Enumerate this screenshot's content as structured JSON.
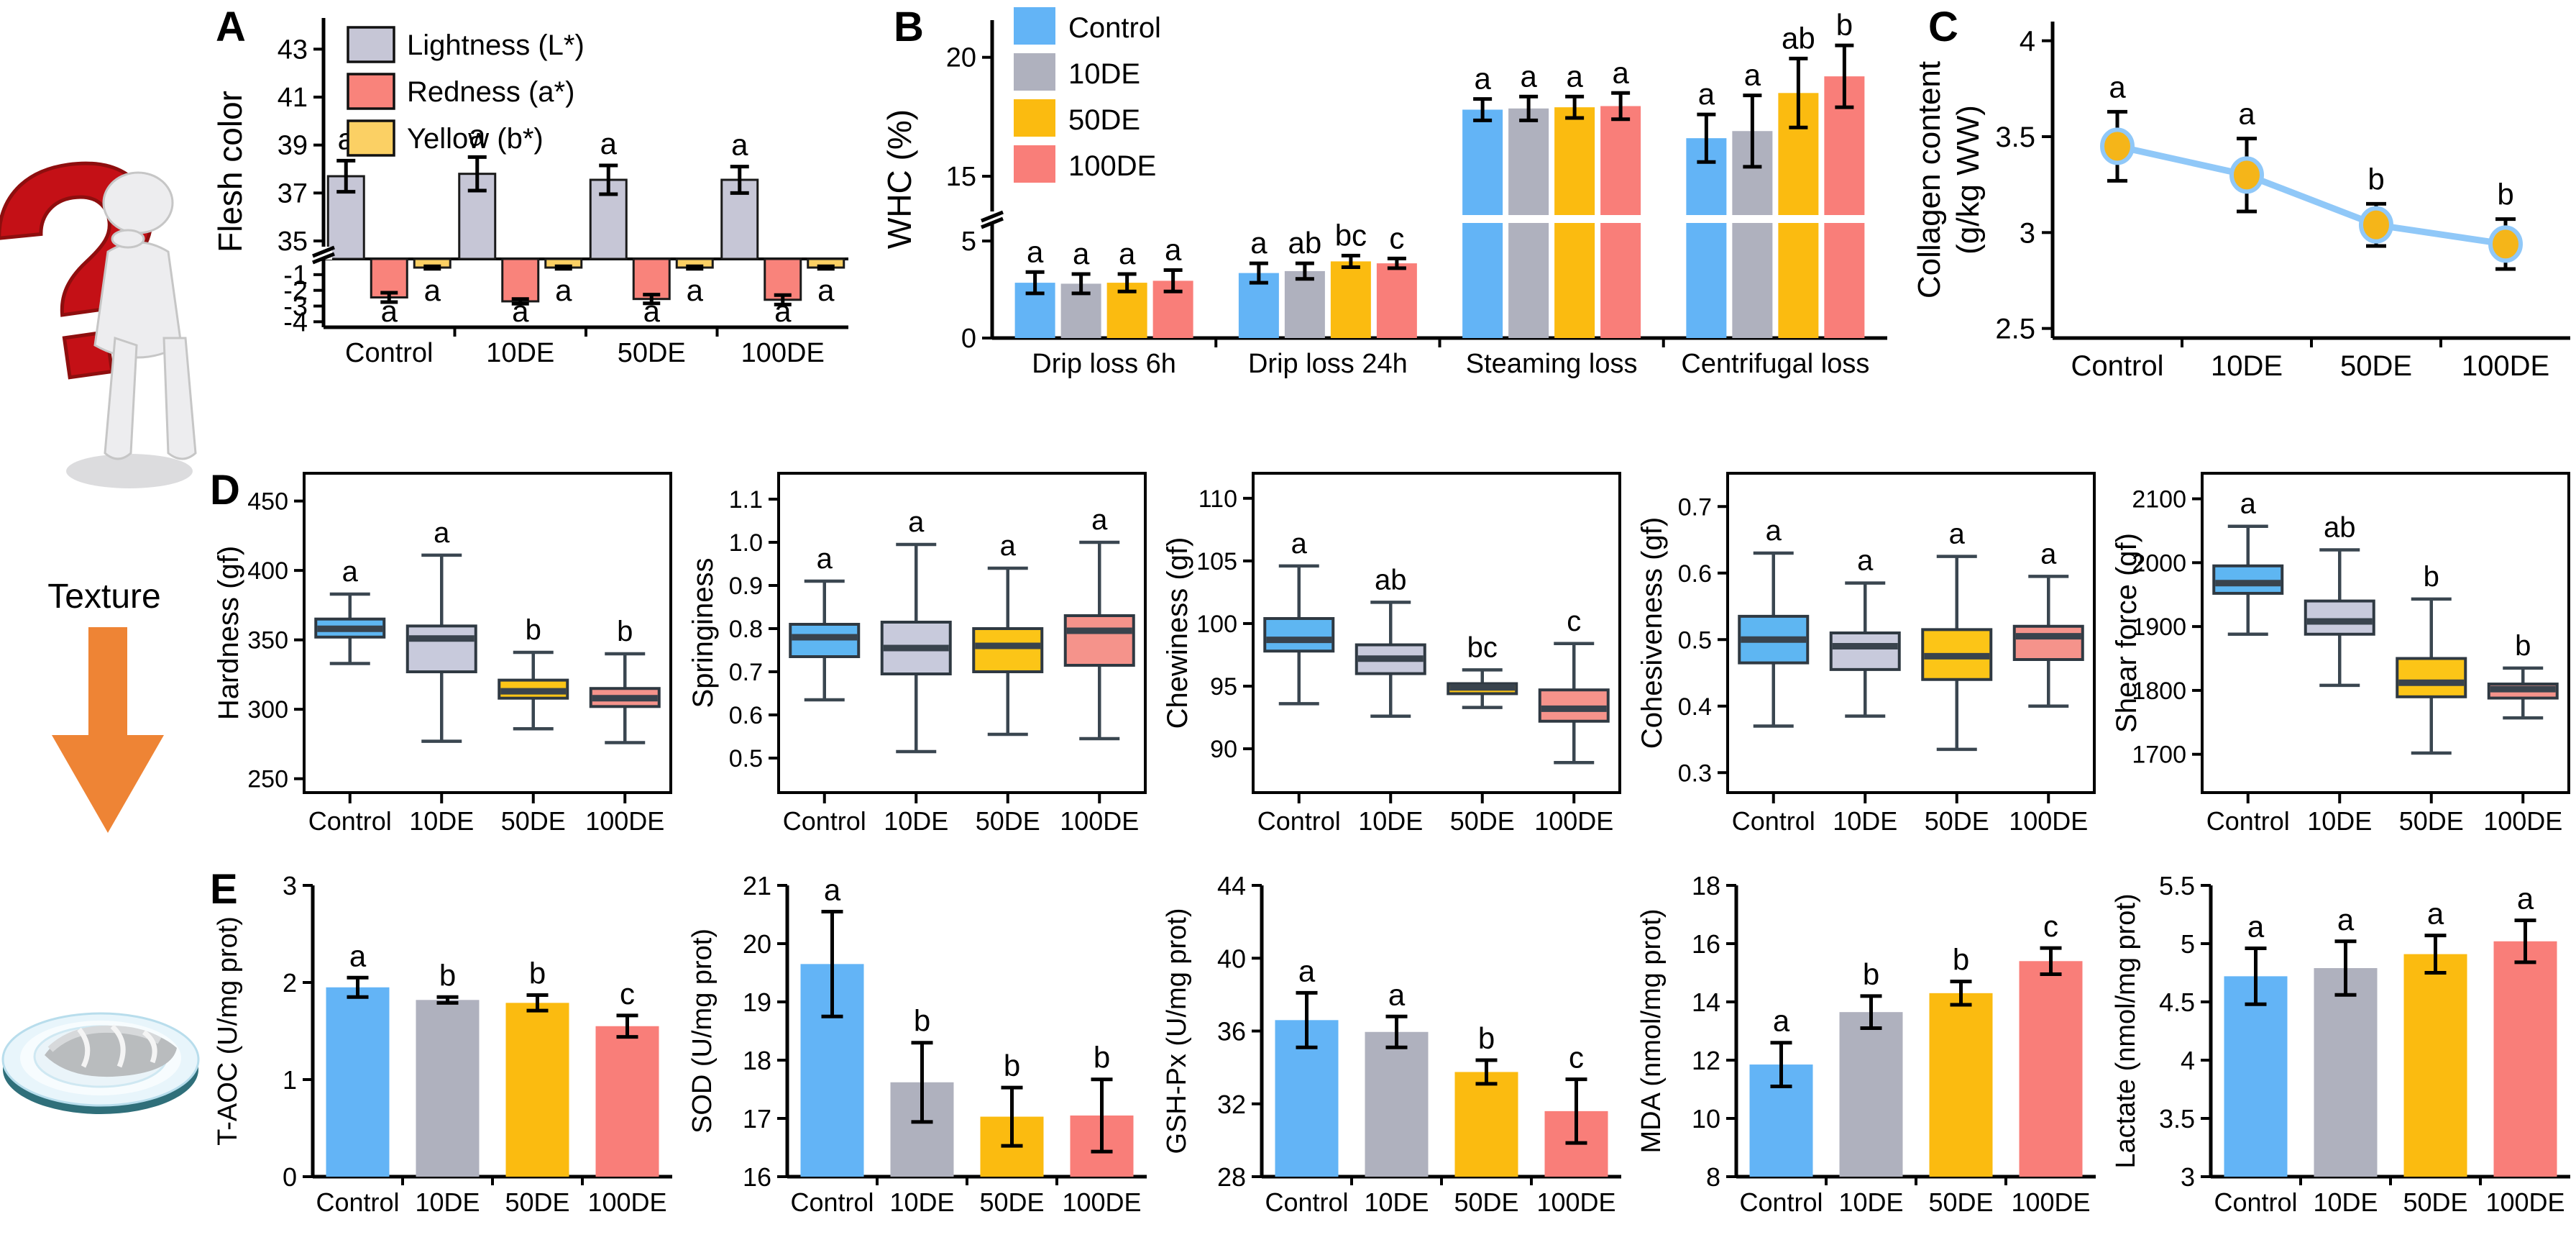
{
  "panel_letters": {
    "A": "A",
    "B": "B",
    "C": "C",
    "D": "D",
    "E": "E"
  },
  "decor": {
    "texture_label": "Texture"
  },
  "palette": {
    "categories": [
      "#63B4F6",
      "#AFB1BE",
      "#FBBB10",
      "#F97E79"
    ],
    "box_fills": [
      "#5EB6F2",
      "#C8CADC",
      "#FCC517",
      "#F5938B"
    ],
    "accent_line": "#90C8F8",
    "marker_fill": "#F5B519",
    "arrow_orange": "#EE8435",
    "question_red": "#C41016"
  },
  "chart_data": [
    {
      "id": "A",
      "type": "bar",
      "subtype": "grouped_broken_axis",
      "ylabel": "Flesh color",
      "categories": [
        "Control",
        "10DE",
        "50DE",
        "100DE"
      ],
      "upper_axis": {
        "range": [
          34.25,
          44.3
        ],
        "ticks": [
          35,
          37,
          39,
          41,
          43
        ],
        "tick_labels": [
          "35",
          "37",
          "39",
          "41",
          "43"
        ]
      },
      "lower_axis": {
        "range": [
          -4.35,
          0
        ],
        "ticks": [
          -1,
          -2,
          -3,
          -4
        ],
        "tick_labels": [
          "-1",
          "-2",
          "-3",
          "-4"
        ]
      },
      "legend_position": "top-left",
      "grid": false,
      "series": [
        {
          "name": "Lightness (L*)",
          "color": "#C6C6D6",
          "values": [
            37.7,
            37.8,
            37.55,
            37.55
          ],
          "errors": [
            0.65,
            0.7,
            0.6,
            0.55
          ],
          "letters": [
            "a",
            "a",
            "a",
            "a"
          ]
        },
        {
          "name": "Redness (a*)",
          "color": "#F9837B",
          "values": [
            -2.45,
            -2.7,
            -2.55,
            -2.6
          ],
          "errors": [
            0.3,
            0.15,
            0.28,
            0.3
          ],
          "letters": [
            "a",
            "a",
            "a",
            "a"
          ]
        },
        {
          "name": "Yellow (b*)",
          "color": "#FBD064",
          "values": [
            -0.55,
            -0.55,
            -0.55,
            -0.55
          ],
          "errors": [
            0.08,
            0.08,
            0.08,
            0.08
          ],
          "letters": [
            "a",
            "a",
            "a",
            "a"
          ]
        }
      ]
    },
    {
      "id": "B",
      "type": "bar",
      "subtype": "grouped_broken_axis",
      "ylabel": "WHC (%)",
      "legend": [
        "Control",
        "10DE",
        "50DE",
        "100DE"
      ],
      "legend_position": "top-left",
      "grid": false,
      "lower_axis": {
        "range": [
          0,
          6.3
        ],
        "ticks": [
          0,
          5
        ],
        "tick_labels": [
          "0",
          "5"
        ]
      },
      "upper_axis": {
        "range": [
          13.4,
          21.2
        ],
        "ticks": [
          15,
          20
        ],
        "tick_labels": [
          "15",
          "20"
        ]
      },
      "groups": [
        {
          "label": "Drip loss 6h",
          "values": [
            2.85,
            2.8,
            2.85,
            2.95
          ],
          "errors": [
            0.55,
            0.5,
            0.45,
            0.55
          ],
          "letters": [
            "a",
            "a",
            "a",
            "a"
          ]
        },
        {
          "label": "Drip loss 24h",
          "values": [
            3.35,
            3.45,
            3.95,
            3.85
          ],
          "errors": [
            0.5,
            0.4,
            0.3,
            0.25
          ],
          "letters": [
            "a",
            "ab",
            "bc",
            "c"
          ]
        },
        {
          "label": "Steaming loss",
          "values": [
            17.8,
            17.85,
            17.9,
            17.95
          ],
          "errors": [
            0.45,
            0.5,
            0.45,
            0.55
          ],
          "letters": [
            "a",
            "a",
            "a",
            "a"
          ]
        },
        {
          "label": "Centrifugal loss",
          "values": [
            16.6,
            16.9,
            18.5,
            19.2
          ],
          "errors": [
            1.0,
            1.5,
            1.45,
            1.3
          ],
          "letters": [
            "a",
            "a",
            "ab",
            "b"
          ]
        }
      ]
    },
    {
      "id": "C",
      "type": "line",
      "ylabel_lines": [
        "Collagen content",
        "(g/kg WW)"
      ],
      "categories": [
        "Control",
        "10DE",
        "50DE",
        "100DE"
      ],
      "values": [
        3.45,
        3.3,
        3.04,
        2.94
      ],
      "errors": [
        0.18,
        0.19,
        0.11,
        0.13
      ],
      "letters": [
        "a",
        "a",
        "b",
        "b"
      ],
      "ylim": [
        2.45,
        4.1
      ],
      "yticks": [
        2.5,
        3,
        3.5,
        4
      ],
      "ytick_labels": [
        "2.5",
        "3",
        "3.5",
        "4"
      ],
      "grid": false
    },
    {
      "id": "D1",
      "type": "box",
      "ylabel": "Hardness  (gf)",
      "ylim": [
        240,
        470
      ],
      "yticks": [
        250,
        300,
        350,
        400,
        450
      ],
      "ytick_labels": [
        "250",
        "300",
        "350",
        "400",
        "450"
      ],
      "boxes": [
        {
          "category": "Control",
          "whislo": 333,
          "q1": 352,
          "med": 358,
          "q3": 365,
          "whishi": 383,
          "letter": "a"
        },
        {
          "category": "10DE",
          "whislo": 277,
          "q1": 327,
          "med": 351,
          "q3": 360,
          "whishi": 411,
          "letter": "a"
        },
        {
          "category": "50DE",
          "whislo": 286,
          "q1": 308,
          "med": 313,
          "q3": 321,
          "whishi": 341,
          "letter": "b"
        },
        {
          "category": "100DE",
          "whislo": 276,
          "q1": 302,
          "med": 308,
          "q3": 315,
          "whishi": 340,
          "letter": "b"
        }
      ]
    },
    {
      "id": "D2",
      "type": "box",
      "ylabel": "Springiness",
      "ylim": [
        0.42,
        1.16
      ],
      "yticks": [
        0.5,
        0.6,
        0.7,
        0.8,
        0.9,
        1.0,
        1.1
      ],
      "ytick_labels": [
        "0.5",
        "0.6",
        "0.7",
        "0.8",
        "0.9",
        "1.0",
        "1.1"
      ],
      "boxes": [
        {
          "category": "Control",
          "whislo": 0.635,
          "q1": 0.735,
          "med": 0.78,
          "q3": 0.81,
          "whishi": 0.91,
          "letter": "a"
        },
        {
          "category": "10DE",
          "whislo": 0.515,
          "q1": 0.695,
          "med": 0.755,
          "q3": 0.815,
          "whishi": 0.995,
          "letter": "a"
        },
        {
          "category": "50DE",
          "whislo": 0.555,
          "q1": 0.7,
          "med": 0.76,
          "q3": 0.8,
          "whishi": 0.94,
          "letter": "a"
        },
        {
          "category": "100DE",
          "whislo": 0.545,
          "q1": 0.715,
          "med": 0.795,
          "q3": 0.83,
          "whishi": 1.0,
          "letter": "a"
        }
      ]
    },
    {
      "id": "D3",
      "type": "box",
      "ylabel": "Chewiness  (gf)",
      "ylim": [
        86.5,
        112
      ],
      "yticks": [
        90,
        95,
        100,
        105,
        110
      ],
      "ytick_labels": [
        "90",
        "95",
        "100",
        "105",
        "110"
      ],
      "boxes": [
        {
          "category": "Control",
          "whislo": 93.6,
          "q1": 97.8,
          "med": 98.7,
          "q3": 100.4,
          "whishi": 104.6,
          "letter": "a"
        },
        {
          "category": "10DE",
          "whislo": 92.6,
          "q1": 96.0,
          "med": 97.2,
          "q3": 98.3,
          "whishi": 101.7,
          "letter": "ab"
        },
        {
          "category": "50DE",
          "whislo": 93.3,
          "q1": 94.4,
          "med": 94.9,
          "q3": 95.2,
          "whishi": 96.3,
          "letter": "bc"
        },
        {
          "category": "100DE",
          "whislo": 88.9,
          "q1": 92.2,
          "med": 93.2,
          "q3": 94.7,
          "whishi": 98.4,
          "letter": "c"
        }
      ]
    },
    {
      "id": "D4",
      "type": "box",
      "ylabel": "Cohesiveness  (gf)",
      "ylim": [
        0.27,
        0.75
      ],
      "yticks": [
        0.3,
        0.4,
        0.5,
        0.6,
        0.7
      ],
      "ytick_labels": [
        "0.3",
        "0.4",
        "0.5",
        "0.6",
        "0.7"
      ],
      "boxes": [
        {
          "category": "Control",
          "whislo": 0.37,
          "q1": 0.465,
          "med": 0.5,
          "q3": 0.535,
          "whishi": 0.63,
          "letter": "a"
        },
        {
          "category": "10DE",
          "whislo": 0.385,
          "q1": 0.455,
          "med": 0.49,
          "q3": 0.51,
          "whishi": 0.585,
          "letter": "a"
        },
        {
          "category": "50DE",
          "whislo": 0.335,
          "q1": 0.44,
          "med": 0.475,
          "q3": 0.515,
          "whishi": 0.625,
          "letter": "a"
        },
        {
          "category": "100DE",
          "whislo": 0.4,
          "q1": 0.47,
          "med": 0.505,
          "q3": 0.52,
          "whishi": 0.595,
          "letter": "a"
        }
      ]
    },
    {
      "id": "D5",
      "type": "box",
      "ylabel": "Shear force (gf)",
      "ylim": [
        1640,
        2140
      ],
      "yticks": [
        1700,
        1800,
        1900,
        2000,
        2100
      ],
      "ytick_labels": [
        "1700",
        "1800",
        "1900",
        "2000",
        "2100"
      ],
      "boxes": [
        {
          "category": "Control",
          "whislo": 1888,
          "q1": 1952,
          "med": 1968,
          "q3": 1995,
          "whishi": 2057,
          "letter": "a"
        },
        {
          "category": "10DE",
          "whislo": 1808,
          "q1": 1888,
          "med": 1908,
          "q3": 1940,
          "whishi": 2020,
          "letter": "ab"
        },
        {
          "category": "50DE",
          "whislo": 1702,
          "q1": 1790,
          "med": 1812,
          "q3": 1850,
          "whishi": 1943,
          "letter": "b"
        },
        {
          "category": "100DE",
          "whislo": 1757,
          "q1": 1788,
          "med": 1802,
          "q3": 1810,
          "whishi": 1835,
          "letter": "b"
        }
      ]
    },
    {
      "id": "E1",
      "type": "bar",
      "ylabel": "T-AOC (U/mg prot)",
      "categories": [
        "Control",
        "10DE",
        "50DE",
        "100DE"
      ],
      "ylim": [
        0,
        3
      ],
      "yticks": [
        0,
        1,
        2,
        3
      ],
      "ytick_labels": [
        "0",
        "1",
        "2",
        "3"
      ],
      "values": [
        1.95,
        1.82,
        1.79,
        1.55
      ],
      "errors": [
        0.1,
        0.03,
        0.08,
        0.11
      ],
      "letters": [
        "a",
        "b",
        "b",
        "c"
      ]
    },
    {
      "id": "E2",
      "type": "bar",
      "ylabel": "SOD (U/mg prot)",
      "categories": [
        "Control",
        "10DE",
        "50DE",
        "100DE"
      ],
      "ylim": [
        16,
        21
      ],
      "yticks": [
        16,
        17,
        18,
        19,
        20,
        21
      ],
      "ytick_labels": [
        "16",
        "17",
        "18",
        "19",
        "20",
        "21"
      ],
      "values": [
        19.65,
        17.62,
        17.03,
        17.05
      ],
      "errors": [
        0.9,
        0.68,
        0.5,
        0.62
      ],
      "letters": [
        "a",
        "b",
        "b",
        "b"
      ]
    },
    {
      "id": "E3",
      "type": "bar",
      "ylabel": "GSH-Px (U/mg prot)",
      "categories": [
        "Control",
        "10DE",
        "50DE",
        "100DE"
      ],
      "ylim": [
        28,
        44
      ],
      "yticks": [
        28,
        32,
        36,
        40,
        44
      ],
      "ytick_labels": [
        "28",
        "32",
        "36",
        "40",
        "44"
      ],
      "values": [
        36.6,
        35.95,
        33.75,
        31.6
      ],
      "errors": [
        1.5,
        0.85,
        0.65,
        1.75
      ],
      "letters": [
        "a",
        "a",
        "b",
        "c"
      ]
    },
    {
      "id": "E4",
      "type": "bar",
      "ylabel": "MDA (nmol/mg prot)",
      "categories": [
        "Control",
        "10DE",
        "50DE",
        "100DE"
      ],
      "ylim": [
        8,
        18
      ],
      "yticks": [
        8,
        10,
        12,
        14,
        16,
        18
      ],
      "ytick_labels": [
        "8",
        "10",
        "12",
        "14",
        "16",
        "18"
      ],
      "values": [
        11.85,
        13.65,
        14.3,
        15.4
      ],
      "errors": [
        0.75,
        0.55,
        0.4,
        0.45
      ],
      "letters": [
        "a",
        "b",
        "b",
        "c"
      ]
    },
    {
      "id": "E5",
      "type": "bar",
      "ylabel": "Lactate (nmol/mg prot)",
      "categories": [
        "Control",
        "10DE",
        "50DE",
        "100DE"
      ],
      "ylim": [
        3,
        5.5
      ],
      "yticks": [
        3,
        3.5,
        4,
        4.5,
        5,
        5.5
      ],
      "ytick_labels": [
        "3",
        "3.5",
        "4",
        "4.5",
        "5",
        "5.5"
      ],
      "values": [
        4.72,
        4.79,
        4.91,
        5.02
      ],
      "errors": [
        0.24,
        0.23,
        0.16,
        0.18
      ],
      "letters": [
        "a",
        "a",
        "a",
        "a"
      ]
    }
  ]
}
